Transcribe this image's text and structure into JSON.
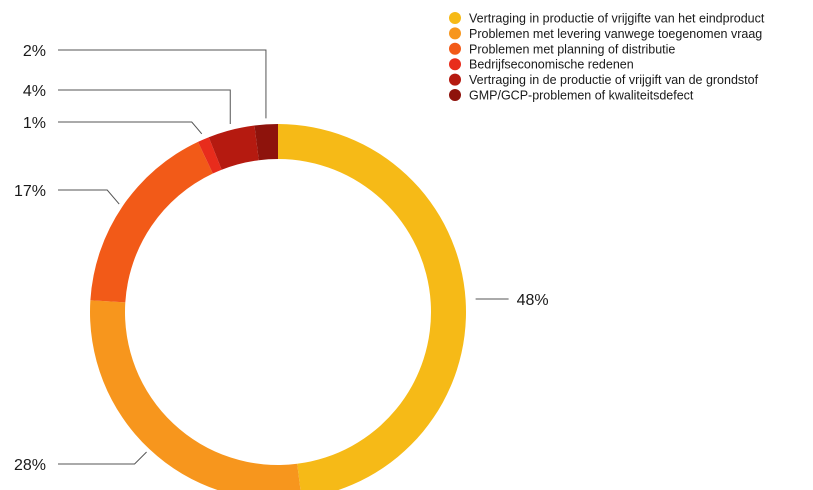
{
  "chart_data": {
    "type": "pie",
    "variant": "donut",
    "title": "",
    "legend_position": "top-right",
    "categories": [
      "Vertraging in productie of vrijgifte van het eindproduct",
      "Problemen met levering vanwege toegenomen vraag",
      "Problemen met planning of distributie",
      "Bedrijfseconomische redenen",
      "Vertraging in de productie of vrijgift van de grondstof",
      "GMP/GCP-problemen of kwaliteitsdefect"
    ],
    "values": [
      48,
      28,
      17,
      1,
      4,
      2
    ],
    "labels": [
      "48%",
      "28%",
      "17%",
      "1%",
      "4%",
      "2%"
    ],
    "colors": [
      "#F6BA17",
      "#F7961D",
      "#F25A18",
      "#E82C1C",
      "#B51A10",
      "#8E130C"
    ]
  }
}
